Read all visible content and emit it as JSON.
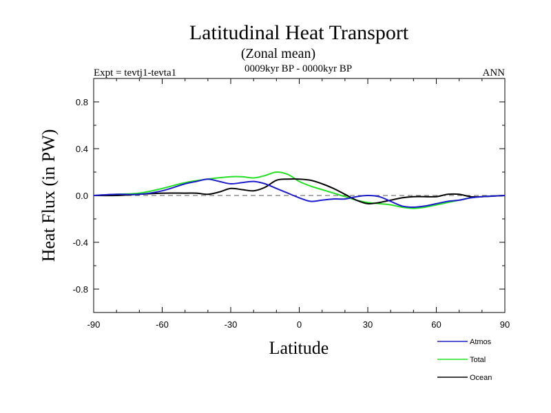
{
  "chart_data": {
    "type": "line",
    "title": "Latitudinal Heat Transport",
    "subtitle": "(Zonal mean)",
    "period": "0009kyr BP - 0000kyr BP",
    "left_label": "Expt = tevtj1-tevta1",
    "right_label": "ANN",
    "xlabel": "Latitude",
    "ylabel": "Heat Flux (in PW)",
    "xlim": [
      -90,
      90
    ],
    "ylim": [
      -1.0,
      1.0
    ],
    "x_ticks": [
      -90,
      -60,
      -30,
      0,
      30,
      60,
      90
    ],
    "x_tick_labels": [
      "-90",
      "-60",
      "-30",
      "0",
      "30",
      "60",
      "90"
    ],
    "y_ticks": [
      0.8,
      0.4,
      0.0,
      -0.4,
      -0.8
    ],
    "y_tick_labels": [
      "0.8",
      "0.4",
      "0.0",
      "-0.4",
      "-0.8"
    ],
    "zero_line": true,
    "grid": false,
    "legend_position": "bottom-right",
    "series": [
      {
        "name": "Atmos",
        "color": "#1a1acc",
        "points": [
          [
            -90,
            0.0
          ],
          [
            -80,
            0.01
          ],
          [
            -70,
            0.01
          ],
          [
            -60,
            0.04
          ],
          [
            -50,
            0.1
          ],
          [
            -45,
            0.12
          ],
          [
            -40,
            0.14
          ],
          [
            -35,
            0.12
          ],
          [
            -30,
            0.1
          ],
          [
            -25,
            0.11
          ],
          [
            -20,
            0.12
          ],
          [
            -15,
            0.1
          ],
          [
            -10,
            0.06
          ],
          [
            -5,
            0.02
          ],
          [
            0,
            -0.02
          ],
          [
            5,
            -0.05
          ],
          [
            10,
            -0.04
          ],
          [
            15,
            -0.03
          ],
          [
            20,
            -0.03
          ],
          [
            25,
            -0.01
          ],
          [
            30,
            0.0
          ],
          [
            35,
            -0.01
          ],
          [
            40,
            -0.05
          ],
          [
            45,
            -0.09
          ],
          [
            50,
            -0.1
          ],
          [
            55,
            -0.09
          ],
          [
            60,
            -0.07
          ],
          [
            65,
            -0.05
          ],
          [
            70,
            -0.04
          ],
          [
            75,
            -0.02
          ],
          [
            80,
            -0.01
          ],
          [
            90,
            0.0
          ]
        ]
      },
      {
        "name": "Total",
        "color": "#22e022",
        "points": [
          [
            -90,
            0.0
          ],
          [
            -80,
            0.01
          ],
          [
            -70,
            0.02
          ],
          [
            -60,
            0.06
          ],
          [
            -50,
            0.11
          ],
          [
            -40,
            0.14
          ],
          [
            -30,
            0.16
          ],
          [
            -25,
            0.16
          ],
          [
            -20,
            0.15
          ],
          [
            -15,
            0.17
          ],
          [
            -10,
            0.2
          ],
          [
            -5,
            0.18
          ],
          [
            0,
            0.12
          ],
          [
            5,
            0.08
          ],
          [
            10,
            0.05
          ],
          [
            15,
            0.02
          ],
          [
            20,
            -0.01
          ],
          [
            25,
            -0.04
          ],
          [
            30,
            -0.06
          ],
          [
            35,
            -0.07
          ],
          [
            40,
            -0.08
          ],
          [
            45,
            -0.1
          ],
          [
            50,
            -0.11
          ],
          [
            55,
            -0.1
          ],
          [
            60,
            -0.08
          ],
          [
            65,
            -0.06
          ],
          [
            70,
            -0.04
          ],
          [
            75,
            -0.02
          ],
          [
            80,
            -0.01
          ],
          [
            90,
            0.0
          ]
        ]
      },
      {
        "name": "Ocean",
        "color": "#000000",
        "points": [
          [
            -90,
            0.0
          ],
          [
            -80,
            0.0
          ],
          [
            -70,
            0.01
          ],
          [
            -60,
            0.02
          ],
          [
            -50,
            0.02
          ],
          [
            -45,
            0.02
          ],
          [
            -40,
            0.01
          ],
          [
            -35,
            0.03
          ],
          [
            -30,
            0.06
          ],
          [
            -25,
            0.05
          ],
          [
            -20,
            0.04
          ],
          [
            -15,
            0.07
          ],
          [
            -10,
            0.13
          ],
          [
            -5,
            0.14
          ],
          [
            0,
            0.14
          ],
          [
            5,
            0.13
          ],
          [
            10,
            0.1
          ],
          [
            15,
            0.06
          ],
          [
            20,
            0.01
          ],
          [
            25,
            -0.04
          ],
          [
            30,
            -0.07
          ],
          [
            35,
            -0.06
          ],
          [
            40,
            -0.04
          ],
          [
            45,
            -0.02
          ],
          [
            50,
            -0.01
          ],
          [
            55,
            -0.01
          ],
          [
            60,
            -0.01
          ],
          [
            65,
            0.01
          ],
          [
            70,
            0.01
          ],
          [
            75,
            -0.01
          ],
          [
            80,
            -0.01
          ],
          [
            90,
            0.0
          ]
        ]
      }
    ]
  }
}
